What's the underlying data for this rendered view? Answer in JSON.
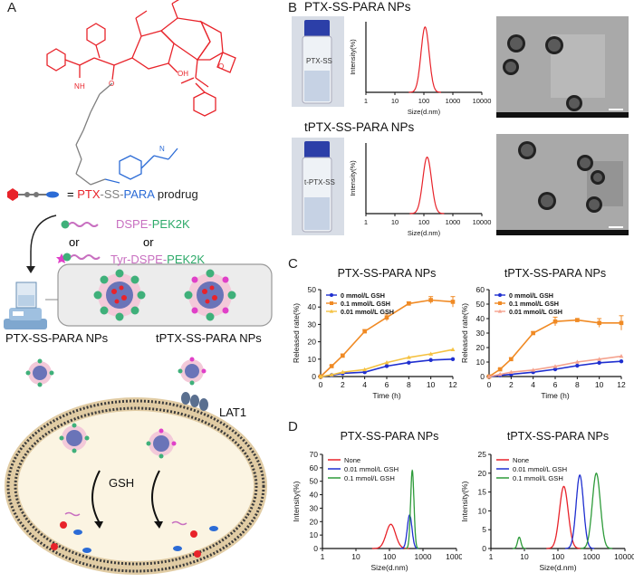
{
  "panels": {
    "A": "A",
    "B": "B",
    "C": "C",
    "D": "D"
  },
  "panelA": {
    "eq": "=",
    "prodrug": {
      "ptx": "PTX",
      "dash1": "-",
      "ss": "SS",
      "dash2": "-",
      "para": "PARA",
      "rest": " prodrug"
    },
    "or1": "or",
    "or2": "or",
    "dspe_pek": {
      "dspe": "DSPE",
      "dash": "-",
      "pek": "PEK2K"
    },
    "tyr_dspe_pek": {
      "tyr": "Tyr",
      "dash1": "-",
      "dspe": "DSPE",
      "dash2": "-",
      "pek": "PEK2K"
    },
    "np1": "PTX-SS-PARA NPs",
    "np2": "tPTX-SS-PARA NPs",
    "gsh": "GSH",
    "lat1": "LAT1",
    "amide_label": "H",
    "nh_label": "N",
    "o_labels": [
      "O",
      "O",
      "OH"
    ],
    "colors": {
      "ptx": "#e8232a",
      "ss": "#7f7f7f",
      "para": "#2b6bd6",
      "dspe": "#c86fc0",
      "pek": "#2eaa6a"
    }
  },
  "panelB": {
    "title1": "PTX-SS-PARA NPs",
    "title2": "tPTX-SS-PARA NPs",
    "ylabel": "Intensity(%)",
    "xlabel": "Size(d.nm)",
    "xticks": [
      "1",
      "10",
      "100",
      "1000",
      "10000"
    ],
    "vial1_label": "PTX-SS",
    "vial2_label": "t-PTX-SS"
  },
  "panelC": {
    "charts": [
      {
        "title": "PTX-SS-PARA NPs",
        "ylabel": "Released rate(%)",
        "xlabel": "Time (h)",
        "yticks": [
          "0",
          "10",
          "20",
          "30",
          "40",
          "50"
        ],
        "xticks": [
          "0",
          "2",
          "4",
          "6",
          "8",
          "10",
          "12"
        ],
        "legend": [
          "0 mmol/L GSH",
          "0.1 mmol/L GSH",
          "0.01 mmol/L GSH"
        ]
      },
      {
        "title": "tPTX-SS-PARA NPs",
        "ylabel": "Released rate(%)",
        "xlabel": "Time (h)",
        "yticks": [
          "0",
          "10",
          "20",
          "30",
          "40",
          "50",
          "60"
        ],
        "xticks": [
          "0",
          "2",
          "4",
          "6",
          "8",
          "10",
          "12"
        ],
        "legend": [
          "0 mmol/L GSH",
          "0.1 mmol/L GSH",
          "0.01 mmol/L GSH"
        ]
      }
    ]
  },
  "panelD": {
    "charts": [
      {
        "title": "PTX-SS-PARA NPs",
        "ylabel": "Intensity(%)",
        "xlabel": "Size(d.nm)",
        "yticks": [
          "0",
          "10",
          "20",
          "30",
          "40",
          "50",
          "60",
          "70"
        ],
        "xticks": [
          "1",
          "10",
          "100",
          "1000",
          "10000"
        ],
        "legend": [
          "None",
          "0.01 mmol/L GSH",
          "0.1 mmol/L GSH"
        ]
      },
      {
        "title": "tPTX-SS-PARA NPs",
        "ylabel": "Intensity(%)",
        "xlabel": "Size(d.nm)",
        "yticks": [
          "0",
          "5",
          "10",
          "15",
          "20",
          "25"
        ],
        "xticks": [
          "1",
          "10",
          "100",
          "1000",
          "10000"
        ],
        "legend": [
          "None",
          "0.01 mmol/L GSH",
          "0.1 mmol/L GSH"
        ]
      }
    ]
  },
  "chart_data": [
    {
      "type": "line",
      "panel": "B",
      "title": "PTX-SS-PARA NPs",
      "xlabel": "Size(d.nm)",
      "ylabel": "Intensity(%)",
      "xscale": "log",
      "xlim": [
        1,
        10000
      ],
      "ylim": [
        0,
        20
      ],
      "series": [
        {
          "color": "#e8232a",
          "peak_x": 110,
          "peak_y": 18.5,
          "width_log": 0.14
        }
      ]
    },
    {
      "type": "line",
      "panel": "B",
      "title": "tPTX-SS-PARA NPs",
      "xlabel": "Size(d.nm)",
      "ylabel": "Intensity(%)",
      "xscale": "log",
      "xlim": [
        1,
        10000
      ],
      "ylim": [
        0,
        20
      ],
      "series": [
        {
          "color": "#e8232a",
          "peak_x": 130,
          "peak_y": 16,
          "width_log": 0.15
        }
      ]
    },
    {
      "type": "line",
      "panel": "C",
      "title": "PTX-SS-PARA NPs",
      "xlabel": "Time (h)",
      "ylabel": "Released rate(%)",
      "xlim": [
        0,
        12
      ],
      "ylim": [
        0,
        50
      ],
      "x": [
        0,
        1,
        2,
        4,
        6,
        8,
        10,
        12
      ],
      "series": [
        {
          "name": "0 mmol/L GSH",
          "color": "#1f2fd0",
          "values": [
            0,
            0.8,
            1.8,
            2.5,
            6,
            8,
            9.5,
            10
          ]
        },
        {
          "name": "0.1 mmol/L GSH",
          "color": "#f08a24",
          "values": [
            0,
            6,
            12,
            26,
            34,
            42,
            44,
            43
          ],
          "errors": [
            0,
            0.5,
            1,
            1,
            2,
            1,
            2,
            3
          ]
        },
        {
          "name": "0.01 mmol/L GSH",
          "color": "#f5c242",
          "values": [
            0,
            1,
            2.5,
            4,
            8,
            11,
            13,
            15.5
          ]
        }
      ]
    },
    {
      "type": "line",
      "panel": "C",
      "title": "tPTX-SS-PARA NPs",
      "xlabel": "Time (h)",
      "ylabel": "Released rate(%)",
      "xlim": [
        0,
        12
      ],
      "ylim": [
        0,
        60
      ],
      "x": [
        0,
        1,
        2,
        4,
        6,
        8,
        10,
        12
      ],
      "series": [
        {
          "name": "0 mmol/L GSH",
          "color": "#1f2fd0",
          "values": [
            0,
            0.8,
            1.5,
            3,
            5,
            7.5,
            9.5,
            10.5
          ]
        },
        {
          "name": "0.1 mmol/L GSH",
          "color": "#f08a24",
          "values": [
            0,
            5,
            12,
            30,
            38,
            39,
            37,
            37
          ],
          "errors": [
            0,
            0.5,
            1,
            1,
            3,
            1,
            3,
            5
          ]
        },
        {
          "name": "0.01 mmol/L GSH",
          "color": "#f5a38f",
          "values": [
            0,
            1.5,
            3,
            4.5,
            7,
            10,
            12,
            14
          ]
        }
      ]
    },
    {
      "type": "line",
      "panel": "D",
      "title": "PTX-SS-PARA NPs",
      "xlabel": "Size(d.nm)",
      "ylabel": "Intensity(%)",
      "xscale": "log",
      "xlim": [
        1,
        10000
      ],
      "ylim": [
        0,
        70
      ],
      "series": [
        {
          "name": "None",
          "color": "#e8232a",
          "peak_x": 110,
          "peak_y": 18,
          "width_log": 0.14
        },
        {
          "name": "0.01 mmol/L GSH",
          "color": "#1f2fd0",
          "peak_x": 400,
          "peak_y": 25,
          "width_log": 0.07
        },
        {
          "name": "0.1 mmol/L GSH",
          "color": "#2e9b3a",
          "peak_x": 480,
          "peak_y": 58,
          "width_log": 0.05
        }
      ]
    },
    {
      "type": "line",
      "panel": "D",
      "title": "tPTX-SS-PARA NPs",
      "xlabel": "Size(d.nm)",
      "ylabel": "Intensity(%)",
      "xscale": "log",
      "xlim": [
        1,
        10000
      ],
      "ylim": [
        0,
        25
      ],
      "series": [
        {
          "name": "None",
          "color": "#e8232a",
          "peak_x": 150,
          "peak_y": 16.5,
          "width_log": 0.13
        },
        {
          "name": "0.01 mmol/L GSH",
          "color": "#1f2fd0",
          "peak_x": 450,
          "peak_y": 19.5,
          "width_log": 0.11
        },
        {
          "name": "0.1 mmol/L GSH",
          "color": "#2e9b3a",
          "peak_x": 1400,
          "peak_y": 20,
          "width_log": 0.12
        },
        {
          "name": "0.1 mmol/L GSH (minor)",
          "color": "#2e9b3a",
          "peak_x": 7,
          "peak_y": 3,
          "width_log": 0.05
        }
      ]
    }
  ]
}
